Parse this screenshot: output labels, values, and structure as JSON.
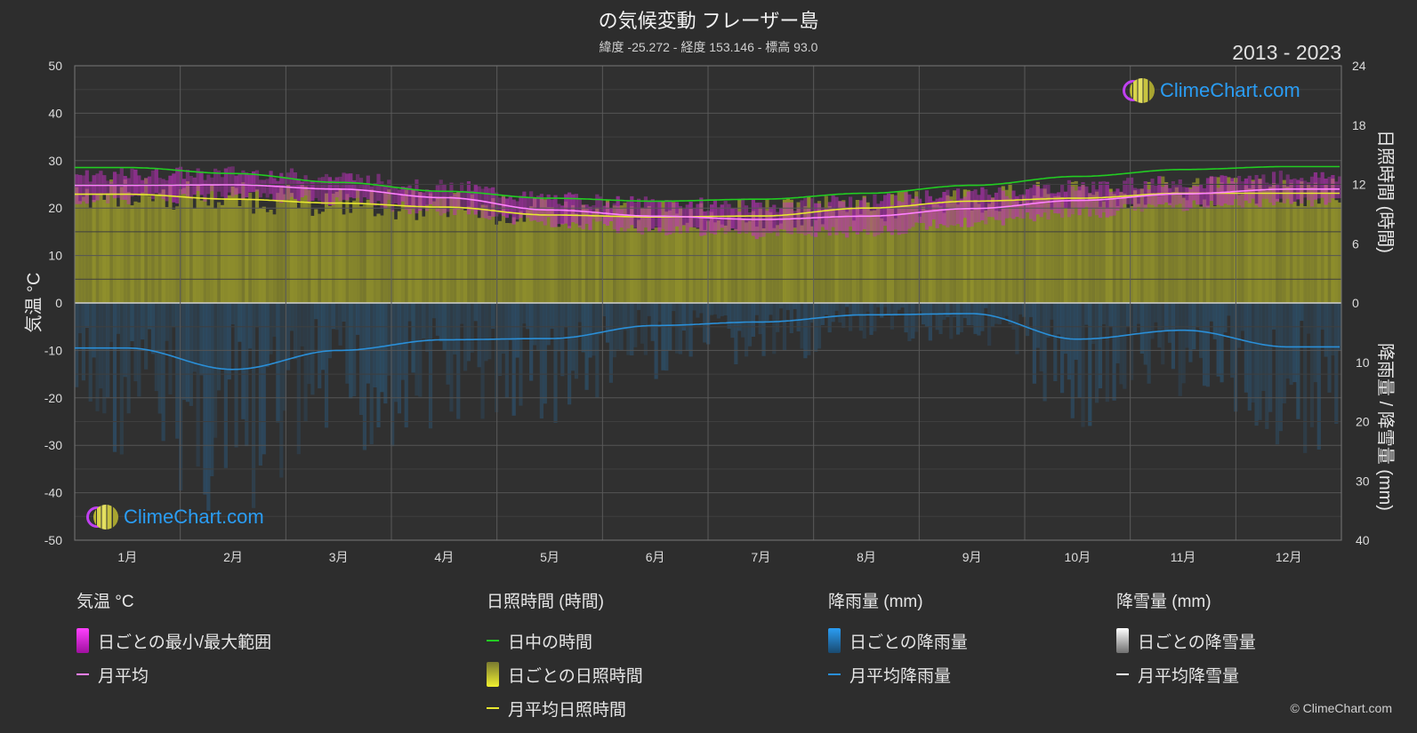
{
  "header": {
    "title": "の気候変動 フレーザー島",
    "subtitle": "緯度 -25.272 - 経度 153.146 - 標高 93.0",
    "years": "2013 - 2023"
  },
  "axes": {
    "left_label": "気温 °C",
    "right_top_label": "日照時間 (時間)",
    "right_bottom_label": "降雨量 / 降雪量 (mm)"
  },
  "logo": {
    "text": "ClimeChart.com"
  },
  "copyright": "© ClimeChart.com",
  "legend": {
    "temperature": {
      "title": "気温 °C",
      "range": "日ごとの最小/最大範囲",
      "avg": "月平均"
    },
    "sunshine": {
      "title": "日照時間 (時間)",
      "daylight": "日中の時間",
      "daily": "日ごとの日照時間",
      "avg": "月平均日照時間"
    },
    "rain": {
      "title": "降雨量 (mm)",
      "daily": "日ごとの降雨量",
      "avg": "月平均降雨量"
    },
    "snow": {
      "title": "降雪量 (mm)",
      "daily": "日ごとの降雪量",
      "avg": "月平均降雪量"
    }
  },
  "colors": {
    "background": "#2d2d2d",
    "daylight": "#22cc22",
    "sunshine_avg": "#e8e830",
    "sunshine_fill": "#9a9a2a",
    "temp_range": "#d020d0",
    "temp_avg": "#ff80ff",
    "rain": "#2a8fd8",
    "snow": "#ffffff"
  },
  "chart_data": {
    "type": "line",
    "categories": [
      "1月",
      "2月",
      "3月",
      "4月",
      "5月",
      "6月",
      "7月",
      "8月",
      "9月",
      "10月",
      "11月",
      "12月"
    ],
    "y_left": {
      "label": "気温 °C",
      "range": [
        -50,
        50
      ],
      "ticks": [
        50,
        40,
        30,
        20,
        10,
        0,
        -10,
        -20,
        -30,
        -40,
        -50
      ]
    },
    "y_right_top": {
      "label": "日照時間 (時間)",
      "range": [
        0,
        24
      ],
      "ticks": [
        24,
        18,
        12,
        6,
        0
      ]
    },
    "y_right_bottom": {
      "label": "降雨量 / 降雪量 (mm)",
      "range": [
        0,
        40
      ],
      "ticks": [
        0,
        10,
        20,
        30,
        40
      ]
    },
    "grid": true,
    "series": [
      {
        "name": "日中の時間",
        "axis": "sunshine_hours",
        "values": [
          13.7,
          13.1,
          12.2,
          11.3,
          10.6,
          10.3,
          10.5,
          11.1,
          11.9,
          12.8,
          13.5,
          13.8
        ]
      },
      {
        "name": "月平均日照時間",
        "axis": "sunshine_hours",
        "values": [
          11.0,
          10.5,
          10.1,
          9.7,
          8.9,
          8.7,
          8.8,
          9.6,
          10.3,
          10.6,
          11.1,
          11.1
        ]
      },
      {
        "name": "月平均",
        "axis": "temperature_c",
        "values": [
          24.8,
          24.9,
          24.0,
          22.2,
          19.6,
          18.3,
          17.6,
          18.3,
          19.9,
          21.6,
          23.0,
          24.0
        ]
      },
      {
        "name": "日ごとの最小/最大範囲",
        "axis": "temperature_c",
        "min": [
          22.0,
          22.5,
          21.5,
          19.5,
          17.0,
          15.5,
          14.5,
          15.0,
          17.0,
          19.0,
          20.5,
          21.5
        ],
        "max": [
          27.0,
          27.5,
          26.5,
          24.5,
          22.0,
          21.0,
          20.5,
          21.5,
          23.0,
          24.5,
          25.5,
          26.5
        ]
      },
      {
        "name": "月平均降雨量",
        "axis": "precipitation_mm",
        "values": [
          7.6,
          11.2,
          8.0,
          6.2,
          6.0,
          3.8,
          3.2,
          2.0,
          1.8,
          6.1,
          4.6,
          7.4
        ]
      },
      {
        "name": "月平均降雪量",
        "axis": "precipitation_mm",
        "values": [
          0,
          0,
          0,
          0,
          0,
          0,
          0,
          0,
          0,
          0,
          0,
          0
        ]
      }
    ]
  }
}
